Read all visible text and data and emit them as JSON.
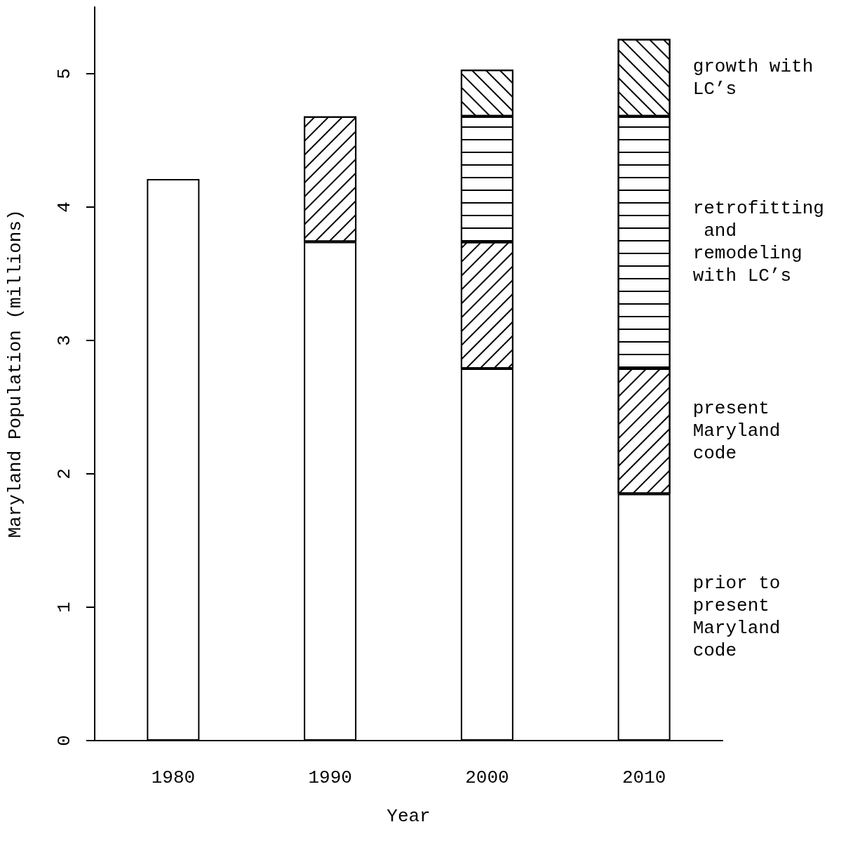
{
  "chart_data": {
    "type": "bar",
    "stacked": true,
    "xlabel": "Year",
    "ylabel": "Maryland Population (millions)",
    "categories": [
      "1980",
      "1990",
      "2000",
      "2010"
    ],
    "series": [
      {
        "name": "prior to present Maryland code",
        "color": "#ffffff",
        "values": [
          4.21,
          3.74,
          2.79,
          1.85
        ]
      },
      {
        "name": "present Maryland code",
        "color": "#ffffff",
        "values": [
          null,
          0.94,
          0.95,
          0.94
        ]
      },
      {
        "name": "retrofitting and remodeling with LC’s",
        "color": "#ffffff",
        "values": [
          null,
          null,
          0.94,
          1.89
        ]
      },
      {
        "name": "growth with LC’s",
        "color": "#ffffff",
        "values": [
          null,
          null,
          0.35,
          0.58
        ]
      }
    ],
    "ylim": [
      0,
      5.5
    ],
    "yticks": [
      0,
      1,
      2,
      3,
      4,
      5
    ],
    "grid": false,
    "legend": false
  }
}
